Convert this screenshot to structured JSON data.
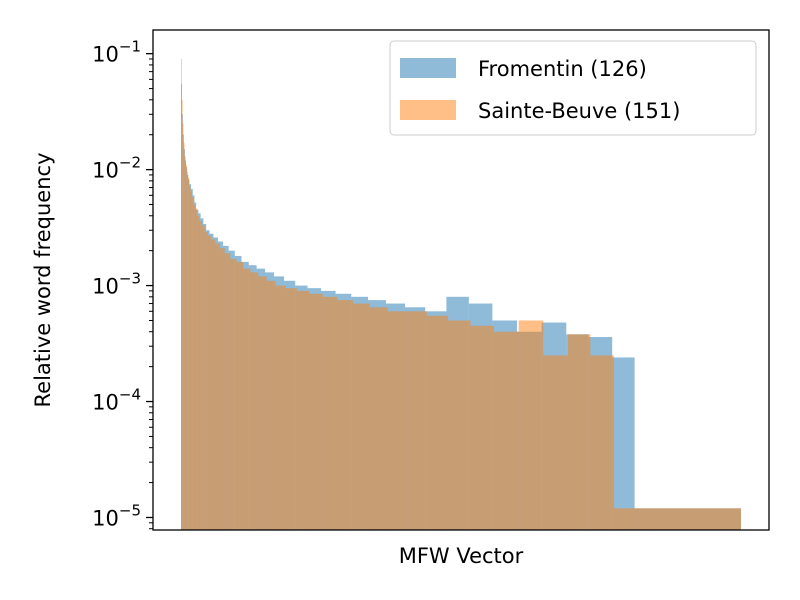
{
  "chart_data": {
    "type": "bar",
    "xlabel": "MFW Vector",
    "ylabel": "Relative word frequency",
    "yscale": "log",
    "ylim": [
      7.8e-06,
      0.16
    ],
    "yticks": [
      {
        "value": 0.1,
        "base": "10",
        "exp": "−1"
      },
      {
        "value": 0.01,
        "base": "10",
        "exp": "−2"
      },
      {
        "value": 0.001,
        "base": "10",
        "exp": "−3"
      },
      {
        "value": 0.0001,
        "base": "10",
        "exp": "−4"
      },
      {
        "value": 1e-05,
        "base": "10",
        "exp": "−5"
      }
    ],
    "grid": false,
    "legend": {
      "position": "top-right"
    },
    "series": [
      {
        "name": "Fromentin (126)",
        "color": "#1f77b4",
        "opacity": 0.5,
        "x_start": [
          0,
          0.0016,
          0.0032,
          0.005,
          0.007,
          0.009,
          0.011,
          0.013,
          0.015,
          0.018,
          0.021,
          0.024,
          0.027,
          0.031,
          0.035,
          0.04,
          0.045,
          0.051,
          0.058,
          0.066,
          0.075,
          0.085,
          0.096,
          0.108,
          0.121,
          0.135,
          0.15,
          0.166,
          0.184,
          0.204,
          0.226,
          0.25,
          0.276,
          0.304,
          0.334,
          0.366,
          0.4,
          0.436,
          0.474,
          0.514,
          0.556,
          0.6,
          0.644,
          0.688,
          0.728,
          0.77,
          0.81,
          0.848
        ],
        "values": [
          0.055,
          0.03,
          0.02,
          0.015,
          0.012,
          0.0105,
          0.009,
          0.0082,
          0.0075,
          0.0068,
          0.006,
          0.0052,
          0.0045,
          0.0042,
          0.0038,
          0.0034,
          0.003,
          0.0028,
          0.0026,
          0.0024,
          0.0022,
          0.002,
          0.0018,
          0.0016,
          0.0015,
          0.0014,
          0.0013,
          0.0012,
          0.0011,
          0.001,
          0.00095,
          0.0009,
          0.00085,
          0.0008,
          0.00075,
          0.0007,
          0.00065,
          0.0006,
          0.0008,
          0.0007,
          0.0005,
          0.0004,
          0.00048,
          0.00038,
          0.00036,
          0.00024,
          1.2e-05,
          1.2e-05
        ],
        "x_end": 1.0
      },
      {
        "name": "Sainte-Beuve (151)",
        "color": "#ff7f0e",
        "opacity": 0.5,
        "x_start": [
          0,
          0.0014,
          0.0028,
          0.0045,
          0.0063,
          0.0083,
          0.0103,
          0.0123,
          0.0145,
          0.017,
          0.0196,
          0.0225,
          0.0255,
          0.029,
          0.033,
          0.0375,
          0.0425,
          0.048,
          0.054,
          0.061,
          0.069,
          0.078,
          0.088,
          0.099,
          0.111,
          0.124,
          0.138,
          0.153,
          0.169,
          0.187,
          0.207,
          0.229,
          0.253,
          0.279,
          0.307,
          0.337,
          0.369,
          0.403,
          0.439,
          0.477,
          0.517,
          0.559,
          0.603,
          0.647,
          0.691,
          0.731,
          0.773,
          0.813
        ],
        "values": [
          0.09,
          0.04,
          0.025,
          0.017,
          0.013,
          0.011,
          0.0095,
          0.0085,
          0.0072,
          0.0065,
          0.0058,
          0.005,
          0.0046,
          0.004,
          0.0036,
          0.0033,
          0.0029,
          0.0027,
          0.0025,
          0.0023,
          0.0021,
          0.0019,
          0.0017,
          0.0016,
          0.0014,
          0.0013,
          0.0012,
          0.0011,
          0.001,
          0.00095,
          0.0009,
          0.00085,
          0.0008,
          0.00075,
          0.0007,
          0.00065,
          0.0006,
          0.0006,
          0.00055,
          0.0005,
          0.00045,
          0.0004,
          0.0005,
          0.00025,
          0.00038,
          0.00025,
          1.2e-05,
          1.2e-05
        ],
        "x_end": 1.0
      }
    ]
  }
}
